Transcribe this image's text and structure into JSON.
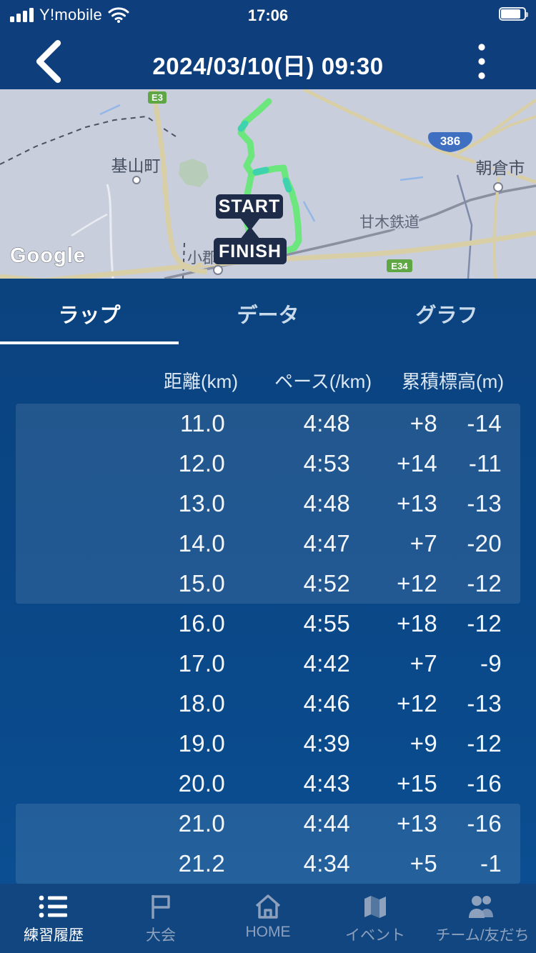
{
  "status_bar": {
    "carrier": "Y!mobile",
    "time": "17:06"
  },
  "header": {
    "title": "2024/03/10(日) 09:30"
  },
  "map": {
    "google_logo": "Google",
    "shields": {
      "e3": "E3",
      "r386": "386",
      "e34": "E34"
    },
    "places": {
      "kiyama": "基山町",
      "asakura": "朝倉市",
      "ogori": "小郡",
      "railway": "甘木鉄道"
    },
    "route_markers": {
      "start": "START",
      "finish": "FINISH"
    }
  },
  "tabs": {
    "items": [
      {
        "label": "ラップ",
        "active": true
      },
      {
        "label": "データ",
        "active": false
      },
      {
        "label": "グラフ",
        "active": false
      }
    ]
  },
  "lap_table": {
    "columns": {
      "distance": "距離(km)",
      "pace": "ペース(/km)",
      "elevation": "累積標高(m)"
    },
    "sections": [
      {
        "highlight": true,
        "rows": [
          {
            "distance": "11.0",
            "pace": "4:48",
            "gain": "+8",
            "loss": "-14"
          },
          {
            "distance": "12.0",
            "pace": "4:53",
            "gain": "+14",
            "loss": "-11"
          },
          {
            "distance": "13.0",
            "pace": "4:48",
            "gain": "+13",
            "loss": "-13"
          },
          {
            "distance": "14.0",
            "pace": "4:47",
            "gain": "+7",
            "loss": "-20"
          },
          {
            "distance": "15.0",
            "pace": "4:52",
            "gain": "+12",
            "loss": "-12"
          }
        ]
      },
      {
        "highlight": false,
        "rows": [
          {
            "distance": "16.0",
            "pace": "4:55",
            "gain": "+18",
            "loss": "-12"
          },
          {
            "distance": "17.0",
            "pace": "4:42",
            "gain": "+7",
            "loss": "-9"
          },
          {
            "distance": "18.0",
            "pace": "4:46",
            "gain": "+12",
            "loss": "-13"
          },
          {
            "distance": "19.0",
            "pace": "4:39",
            "gain": "+9",
            "loss": "-12"
          },
          {
            "distance": "20.0",
            "pace": "4:43",
            "gain": "+15",
            "loss": "-16"
          }
        ]
      },
      {
        "highlight": true,
        "rows": [
          {
            "distance": "21.0",
            "pace": "4:44",
            "gain": "+13",
            "loss": "-16"
          },
          {
            "distance": "21.2",
            "pace": "4:34",
            "gain": "+5",
            "loss": "-1"
          }
        ]
      }
    ]
  },
  "tab_bar": {
    "items": [
      {
        "label": "練習履歴",
        "icon": "list-icon",
        "active": true
      },
      {
        "label": "大会",
        "icon": "flag-icon",
        "active": false
      },
      {
        "label": "HOME",
        "icon": "home-icon",
        "active": false
      },
      {
        "label": "イベント",
        "icon": "map-icon",
        "active": false
      },
      {
        "label": "チーム/友だち",
        "icon": "people-icon",
        "active": false
      }
    ]
  },
  "colors": {
    "header_bg": "#0e3e7c",
    "content_top": "#0c3f77",
    "content_bottom": "#0b5094",
    "highlight_panel": "rgba(255,255,255,0.10)",
    "active_underline": "#ffffff",
    "nav_bg": "#114680",
    "nav_inactive": "#8da1bd",
    "map_bg": "#c9cedd",
    "route": "#66e878",
    "route_alt": "#3fd2ae"
  }
}
